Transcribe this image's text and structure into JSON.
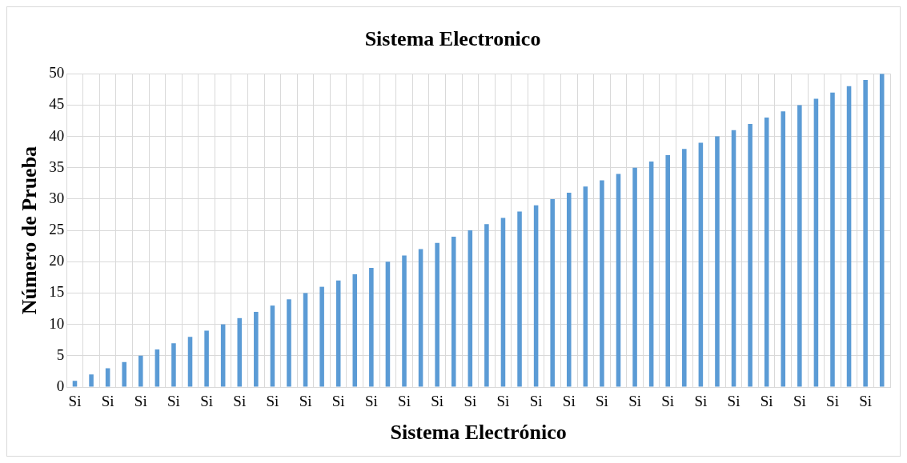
{
  "chart_data": {
    "type": "bar",
    "title": "Sistema Electronico",
    "xlabel": "Sistema Electrónico",
    "ylabel": "Número de Prueba",
    "categories": [
      "Si",
      null,
      "Si",
      null,
      "Si",
      null,
      "Si",
      null,
      "Si",
      null,
      "Si",
      null,
      "Si",
      null,
      "Si",
      null,
      "Si",
      null,
      "Si",
      null,
      "Si",
      null,
      "Si",
      null,
      "Si",
      null,
      "Si",
      null,
      "Si",
      null,
      "Si",
      null,
      "Si",
      null,
      "Si",
      null,
      "Si",
      null,
      "Si",
      null,
      "Si",
      null,
      "Si",
      null,
      "Si",
      null,
      "Si",
      null,
      "Si",
      null
    ],
    "values": [
      1,
      2,
      3,
      4,
      5,
      6,
      7,
      8,
      9,
      10,
      11,
      12,
      13,
      14,
      15,
      16,
      17,
      18,
      19,
      20,
      21,
      22,
      23,
      24,
      25,
      26,
      27,
      28,
      29,
      30,
      31,
      32,
      33,
      34,
      35,
      36,
      37,
      38,
      39,
      40,
      41,
      42,
      43,
      44,
      45,
      46,
      47,
      48,
      49,
      50
    ],
    "color": "#5b9bd5",
    "ylim": [
      0,
      50
    ],
    "yticks": [
      0,
      5,
      10,
      15,
      20,
      25,
      30,
      35,
      40,
      45,
      50
    ],
    "grid": true
  }
}
